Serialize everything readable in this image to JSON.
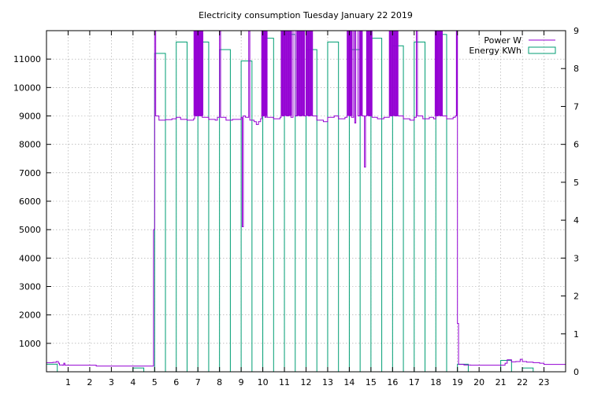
{
  "chart_data": {
    "type": "bar+line",
    "title": "Electricity consumption Tuesday January 22 2019",
    "x_ticks": [
      1,
      2,
      3,
      4,
      5,
      6,
      7,
      8,
      9,
      10,
      11,
      12,
      13,
      14,
      15,
      16,
      17,
      18,
      19,
      20,
      21,
      22,
      23
    ],
    "xlim": [
      0,
      24
    ],
    "y_left_ticks": [
      1000,
      2000,
      3000,
      4000,
      5000,
      6000,
      7000,
      8000,
      9000,
      10000,
      11000
    ],
    "y_left_lim": [
      0,
      12000
    ],
    "y_right_ticks": [
      0,
      1,
      2,
      3,
      4,
      5,
      6,
      7,
      8,
      9
    ],
    "y_right_lim": [
      0,
      9
    ],
    "grid": true,
    "legend_position": "top-right",
    "legend": [
      {
        "label": "Power W",
        "color": "#9400d3"
      },
      {
        "label": "Energy KWh",
        "color": "#009e73"
      }
    ],
    "energy_series": {
      "name": "Energy KWh",
      "color": "#009e73",
      "hours": [
        0,
        1,
        2,
        3,
        4,
        5,
        6,
        7,
        8,
        9,
        10,
        11,
        12,
        13,
        14,
        15,
        16,
        17,
        18,
        19,
        20,
        21,
        22,
        23
      ],
      "values": [
        0.2,
        0,
        0,
        0,
        0.1,
        8.4,
        8.7,
        8.7,
        8.5,
        8.2,
        8.8,
        8.9,
        8.5,
        8.7,
        8.5,
        8.8,
        8.6,
        8.7,
        8.9,
        0.2,
        0,
        0.3,
        0.1,
        0
      ]
    },
    "power_series": {
      "name": "Power W",
      "color": "#9400d3",
      "points": [
        [
          0,
          320
        ],
        [
          0.3,
          330
        ],
        [
          0.45,
          360
        ],
        [
          0.55,
          300
        ],
        [
          0.6,
          240
        ],
        [
          0.75,
          230
        ],
        [
          0.8,
          300
        ],
        [
          0.85,
          230
        ],
        [
          1,
          230
        ],
        [
          1.5,
          230
        ],
        [
          2,
          230
        ],
        [
          2.3,
          200
        ],
        [
          2.5,
          200
        ],
        [
          3,
          200
        ],
        [
          3.5,
          200
        ],
        [
          4,
          200
        ],
        [
          4.5,
          200
        ],
        [
          4.9,
          200
        ],
        [
          4.95,
          5000
        ],
        [
          5.0,
          12000
        ],
        [
          5.05,
          9000
        ],
        [
          5.2,
          8850
        ],
        [
          5.5,
          8870
        ],
        [
          5.8,
          8900
        ],
        [
          6.0,
          8950
        ],
        [
          6.2,
          8880
        ],
        [
          6.5,
          8850
        ],
        [
          6.8,
          8900
        ],
        [
          6.85,
          12000
        ],
        [
          6.9,
          9000
        ],
        [
          6.95,
          12000
        ],
        [
          7.0,
          9000
        ],
        [
          7.05,
          12000
        ],
        [
          7.1,
          9000
        ],
        [
          7.15,
          12000
        ],
        [
          7.2,
          8950
        ],
        [
          7.5,
          8880
        ],
        [
          7.8,
          8850
        ],
        [
          7.9,
          8950
        ],
        [
          8.0,
          12000
        ],
        [
          8.05,
          8950
        ],
        [
          8.3,
          8850
        ],
        [
          8.6,
          8880
        ],
        [
          8.8,
          8880
        ],
        [
          9.0,
          8950
        ],
        [
          9.05,
          5100
        ],
        [
          9.1,
          9000
        ],
        [
          9.2,
          8950
        ],
        [
          9.35,
          12000
        ],
        [
          9.4,
          8850
        ],
        [
          9.6,
          8800
        ],
        [
          9.7,
          8700
        ],
        [
          9.8,
          8800
        ],
        [
          9.9,
          8900
        ],
        [
          9.95,
          12000
        ],
        [
          10.0,
          9000
        ],
        [
          10.05,
          12000
        ],
        [
          10.1,
          8950
        ],
        [
          10.15,
          12000
        ],
        [
          10.2,
          8950
        ],
        [
          10.5,
          8900
        ],
        [
          10.8,
          8950
        ],
        [
          10.85,
          12000
        ],
        [
          10.9,
          9000
        ],
        [
          11.0,
          12000
        ],
        [
          11.1,
          9000
        ],
        [
          11.2,
          12000
        ],
        [
          11.3,
          8950
        ],
        [
          11.4,
          12000
        ],
        [
          11.5,
          9000
        ],
        [
          11.6,
          12000
        ],
        [
          11.7,
          9000
        ],
        [
          11.8,
          12000
        ],
        [
          11.9,
          9000
        ],
        [
          12.0,
          12000
        ],
        [
          12.1,
          9000
        ],
        [
          12.2,
          12000
        ],
        [
          12.3,
          9000
        ],
        [
          12.5,
          8850
        ],
        [
          12.8,
          8800
        ],
        [
          13.0,
          8950
        ],
        [
          13.3,
          9000
        ],
        [
          13.5,
          8900
        ],
        [
          13.8,
          8950
        ],
        [
          13.9,
          12000
        ],
        [
          14.0,
          9000
        ],
        [
          14.05,
          12000
        ],
        [
          14.1,
          8950
        ],
        [
          14.2,
          12000
        ],
        [
          14.25,
          8750
        ],
        [
          14.3,
          12000
        ],
        [
          14.4,
          9000
        ],
        [
          14.5,
          12000
        ],
        [
          14.6,
          9000
        ],
        [
          14.7,
          7200
        ],
        [
          14.75,
          9000
        ],
        [
          14.8,
          12000
        ],
        [
          14.9,
          9000
        ],
        [
          15.0,
          12000
        ],
        [
          15.05,
          8950
        ],
        [
          15.3,
          8900
        ],
        [
          15.6,
          8950
        ],
        [
          15.85,
          12000
        ],
        [
          15.9,
          9000
        ],
        [
          16.0,
          12000
        ],
        [
          16.1,
          9000
        ],
        [
          16.2,
          12000
        ],
        [
          16.25,
          9000
        ],
        [
          16.5,
          8900
        ],
        [
          16.8,
          8850
        ],
        [
          17.0,
          8950
        ],
        [
          17.1,
          12000
        ],
        [
          17.15,
          9000
        ],
        [
          17.4,
          8900
        ],
        [
          17.7,
          8950
        ],
        [
          17.9,
          8900
        ],
        [
          18.0,
          12000
        ],
        [
          18.05,
          9000
        ],
        [
          18.1,
          12000
        ],
        [
          18.2,
          9000
        ],
        [
          18.25,
          12000
        ],
        [
          18.3,
          9000
        ],
        [
          18.5,
          8900
        ],
        [
          18.8,
          8950
        ],
        [
          18.9,
          9000
        ],
        [
          18.95,
          12000
        ],
        [
          19.0,
          1700
        ],
        [
          19.05,
          260
        ],
        [
          19.3,
          240
        ],
        [
          19.6,
          230
        ],
        [
          20,
          230
        ],
        [
          20.5,
          230
        ],
        [
          21,
          230
        ],
        [
          21.2,
          300
        ],
        [
          21.3,
          420
        ],
        [
          21.5,
          350
        ],
        [
          21.7,
          360
        ],
        [
          21.9,
          440
        ],
        [
          22.0,
          360
        ],
        [
          22.2,
          340
        ],
        [
          22.5,
          320
        ],
        [
          22.8,
          300
        ],
        [
          23,
          260
        ],
        [
          23.5,
          260
        ],
        [
          24,
          260
        ]
      ]
    }
  }
}
